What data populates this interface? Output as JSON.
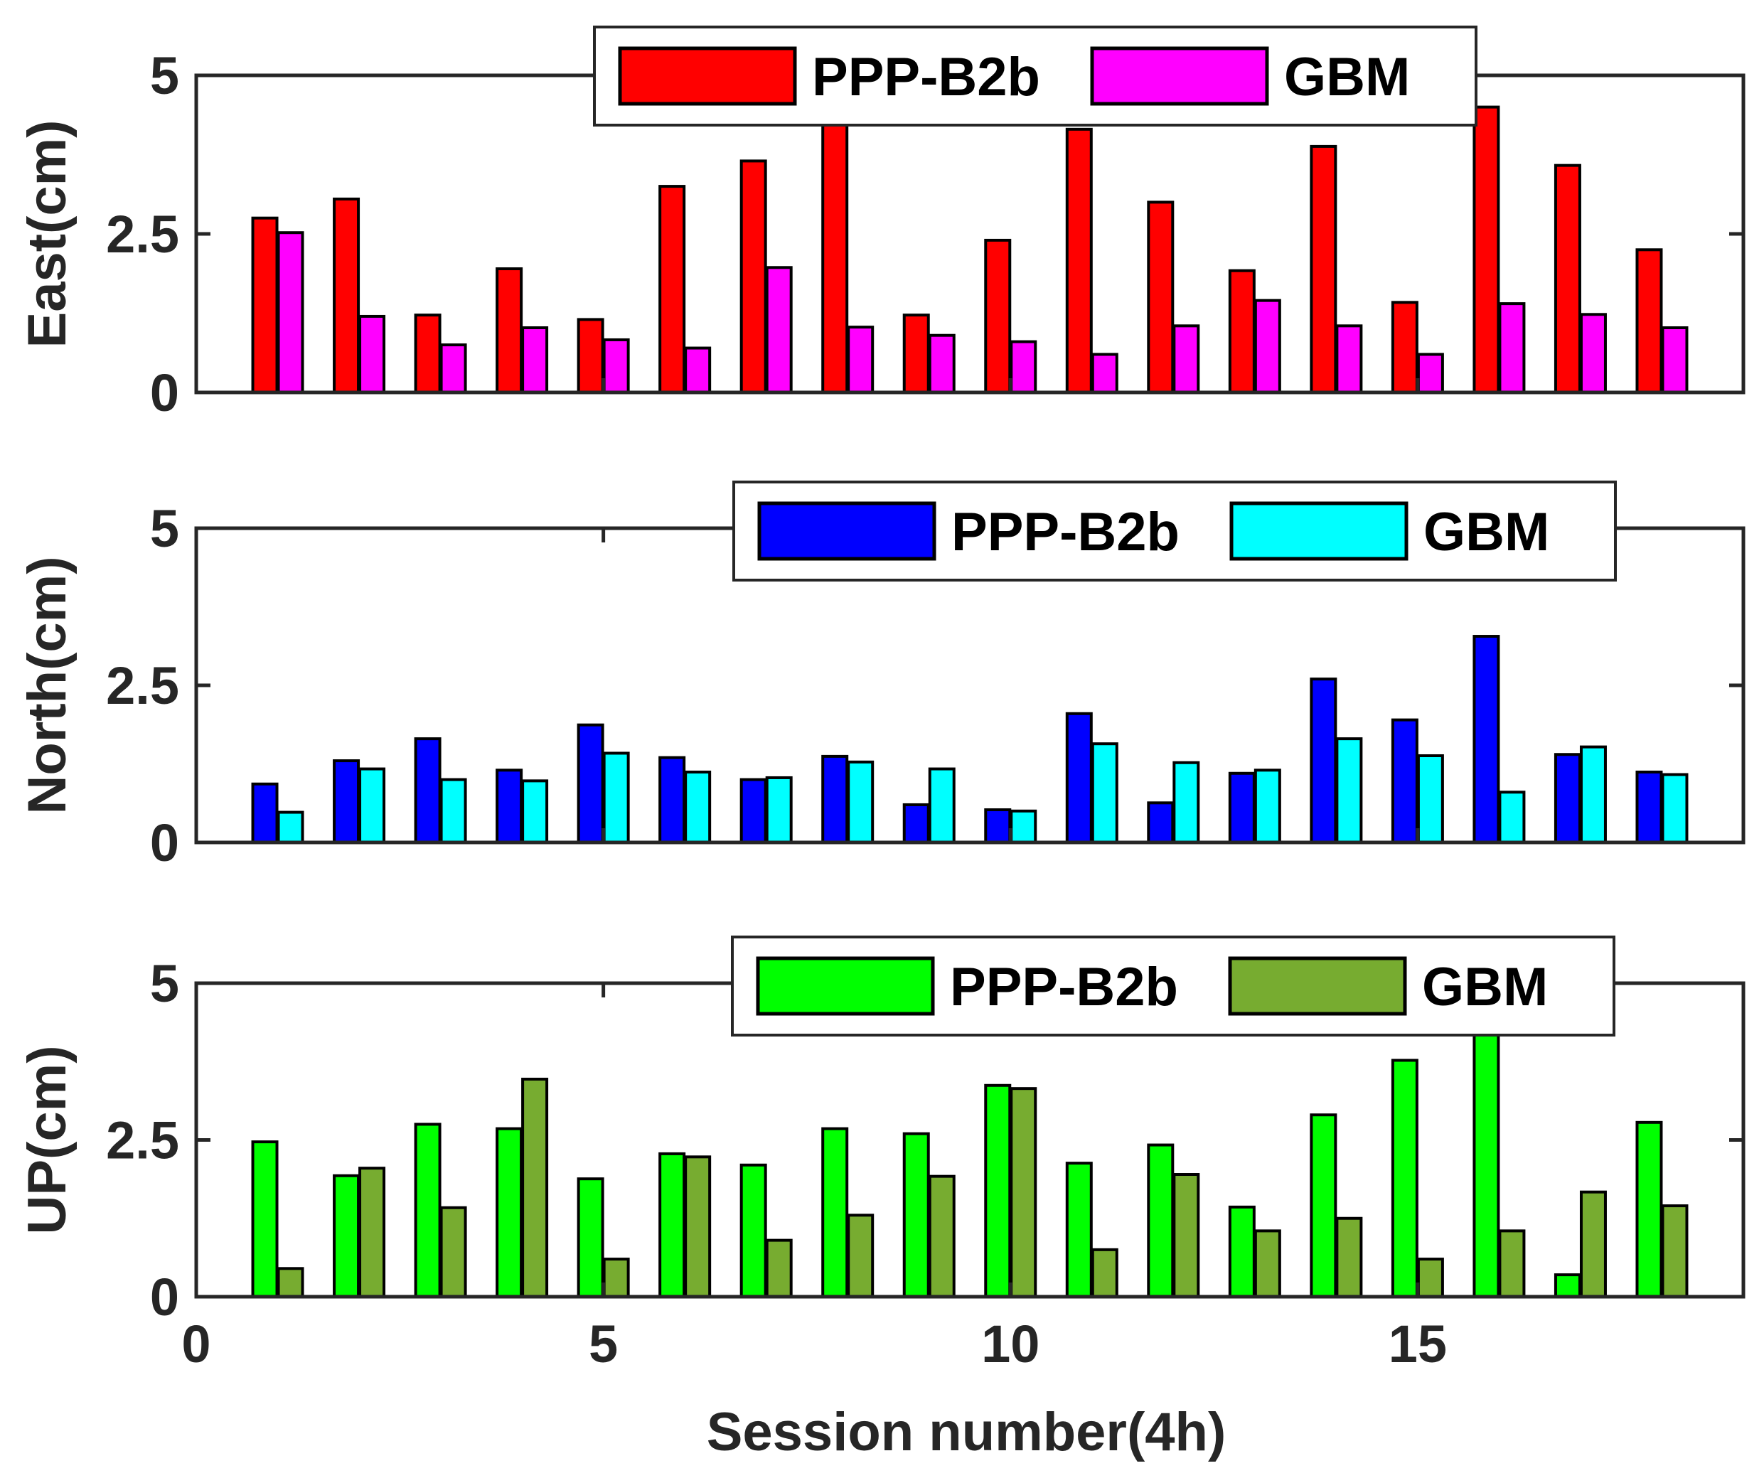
{
  "chart_data": {
    "type": "bar",
    "xlabel": "Session number(4h)",
    "xlim": [
      0,
      19
    ],
    "xticks": [
      0,
      5,
      10,
      15
    ],
    "categories": [
      1,
      2,
      3,
      4,
      5,
      6,
      7,
      8,
      9,
      10,
      11,
      12,
      13,
      14,
      15,
      16,
      17,
      18
    ],
    "panels": [
      {
        "id": "east",
        "ylabel": "East(cm)",
        "ylim": [
          0,
          5
        ],
        "yticks": [
          0,
          2.5,
          5
        ],
        "ytick_labels": [
          "0",
          "2.5",
          "5"
        ],
        "legend_position": "top-center",
        "series": [
          {
            "name": "PPP-B2b",
            "color": "#ff0000",
            "values": [
              2.75,
              3.05,
              1.22,
              1.95,
              1.15,
              3.25,
              3.65,
              4.3,
              1.22,
              2.4,
              4.15,
              3.0,
              1.92,
              3.88,
              1.42,
              4.5,
              3.58,
              2.25
            ]
          },
          {
            "name": "GBM",
            "color": "#ff00ff",
            "values": [
              2.52,
              1.2,
              0.75,
              1.02,
              0.83,
              0.7,
              1.97,
              1.03,
              0.9,
              0.8,
              0.6,
              1.05,
              1.45,
              1.05,
              0.6,
              1.4,
              1.23,
              1.02
            ]
          }
        ]
      },
      {
        "id": "north",
        "ylabel": "North(cm)",
        "ylim": [
          0,
          5
        ],
        "yticks": [
          0,
          2.5,
          5
        ],
        "ytick_labels": [
          "0",
          "2.5",
          "5"
        ],
        "legend_position": "top-right",
        "series": [
          {
            "name": "PPP-B2b",
            "color": "#0000ff",
            "values": [
              0.93,
              1.3,
              1.65,
              1.15,
              1.87,
              1.35,
              1.0,
              1.37,
              0.6,
              0.52,
              2.05,
              0.63,
              1.1,
              2.6,
              1.95,
              3.28,
              1.4,
              1.12
            ]
          },
          {
            "name": "GBM",
            "color": "#00ffff",
            "values": [
              0.48,
              1.17,
              1.0,
              0.98,
              1.42,
              1.12,
              1.03,
              1.28,
              1.17,
              0.5,
              1.57,
              1.27,
              1.15,
              1.65,
              1.38,
              0.8,
              1.52,
              1.08
            ]
          }
        ]
      },
      {
        "id": "up",
        "ylabel": "UP(cm)",
        "ylim": [
          0,
          5
        ],
        "yticks": [
          0,
          2.5,
          5
        ],
        "ytick_labels": [
          "0",
          "2.5",
          "5"
        ],
        "legend_position": "top-right",
        "series": [
          {
            "name": "PPP-B2b",
            "color": "#00ff00",
            "values": [
              2.47,
              1.93,
              2.75,
              2.68,
              1.88,
              2.28,
              2.1,
              2.68,
              2.6,
              3.37,
              2.13,
              2.42,
              1.43,
              2.9,
              3.77,
              4.2,
              0.35,
              2.78
            ]
          },
          {
            "name": "GBM",
            "color": "#77ac30",
            "values": [
              0.45,
              2.05,
              1.42,
              3.47,
              0.6,
              2.23,
              0.9,
              1.3,
              1.92,
              3.32,
              0.75,
              1.95,
              1.05,
              1.25,
              0.6,
              1.05,
              1.67,
              1.45
            ]
          }
        ]
      }
    ]
  }
}
